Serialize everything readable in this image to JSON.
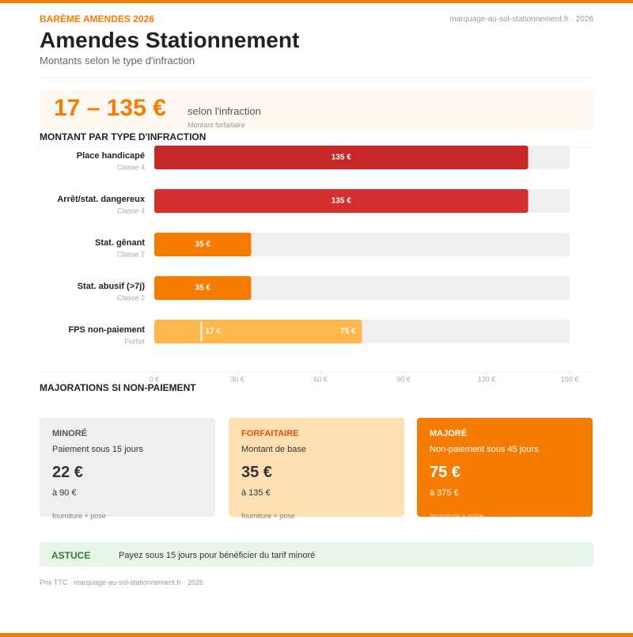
{
  "header": {
    "kicker": "BARÈME AMENDES 2026",
    "site": "marquage-au-sol-stationnement.fr · 2026",
    "title": "Amendes Stationnement",
    "subtitle": "Montants selon le type d'infraction"
  },
  "headline": {
    "range": "17 – 135 €",
    "text": "selon l'infraction",
    "note": "Montant forfaitaire"
  },
  "chart_data": {
    "type": "bar",
    "orientation": "horizontal",
    "title": "MONTANT PAR TYPE D'INFRACTION",
    "categories": [
      "Place handicapé",
      "Arrêt/stat. dangereux",
      "Stat. gênant",
      "Stat. abusif (>7j)",
      "FPS non-paiement"
    ],
    "category_notes": [
      "Classe 4",
      "Classe 4",
      "Classe 2",
      "Classe 2",
      "Forfait"
    ],
    "values": [
      135,
      135,
      35,
      35,
      75
    ],
    "value_labels": [
      "135 €",
      "135 €",
      "35 €",
      "35 €",
      "75 €"
    ],
    "min_values": [
      null,
      null,
      null,
      null,
      17
    ],
    "min_value_labels": [
      null,
      null,
      null,
      null,
      "17 €"
    ],
    "colors": [
      "#c62828",
      "#d32f2f",
      "#f57c00",
      "#f57c00",
      "#ffb74d"
    ],
    "xlim": [
      0,
      150
    ],
    "xticks": [
      {
        "value": 0,
        "label": "0 €"
      },
      {
        "value": 30,
        "label": "30 €"
      },
      {
        "value": 60,
        "label": "60 €"
      },
      {
        "value": 90,
        "label": "90 €"
      },
      {
        "value": 120,
        "label": "120 €"
      },
      {
        "value": 150,
        "label": "150 €"
      }
    ]
  },
  "surcharges": {
    "title": "MAJORATIONS SI NON-PAIEMENT",
    "cards": [
      {
        "label": "MINORÉ",
        "desc": "Paiement sous 15 jours",
        "amount": "22 €",
        "sub": "à 90 €",
        "note": "fourniture + pose"
      },
      {
        "label": "FORFAITAIRE",
        "desc": "Montant de base",
        "amount": "35 €",
        "sub": "à 135 €",
        "note": "fourniture + pose"
      },
      {
        "label": "MAJORÉ",
        "desc": "Non-paiement sous 45 jours",
        "amount": "75 €",
        "sub": "à 375 €",
        "note": "fourniture + pose"
      }
    ]
  },
  "tip": {
    "label": "ASTUCE",
    "text": "Payez sous 15 jours pour bénéficier du tarif minoré"
  },
  "footer": "Prix TTC · marquage-au-sol-stationnement.fr · 2026"
}
